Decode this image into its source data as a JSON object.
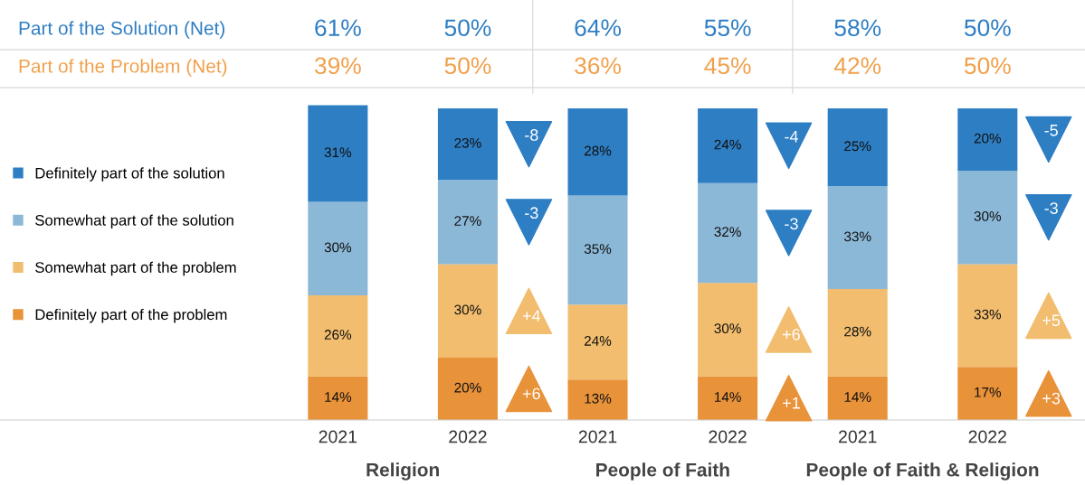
{
  "chart_data": {
    "type": "bar",
    "stacked": true,
    "legend": "left",
    "tick_labels": "x",
    "categories": [
      "2021",
      "2022",
      "2021",
      "2022",
      "2021",
      "2022"
    ],
    "series": [
      {
        "name": "Definitely part of the problem",
        "color": "#e8923a",
        "values": [
          14,
          20,
          13,
          14,
          14,
          17
        ],
        "value_labels": [
          "14%",
          "20%",
          "13%",
          "14%",
          "14%",
          "17%"
        ]
      },
      {
        "name": "Somewhat part of the problem",
        "color": "#f2bd6e",
        "values": [
          26,
          30,
          24,
          30,
          28,
          33
        ],
        "value_labels": [
          "26%",
          "30%",
          "24%",
          "30%",
          "28%",
          "33%"
        ]
      },
      {
        "name": "Somewhat part of the solution",
        "color": "#8cb8d8",
        "values": [
          30,
          27,
          35,
          32,
          33,
          30
        ],
        "value_labels": [
          "30%",
          "27%",
          "35%",
          "32%",
          "33%",
          "30%"
        ]
      },
      {
        "name": "Definitely part of the solution",
        "color": "#2e7ec4",
        "values": [
          31,
          23,
          28,
          24,
          25,
          20
        ],
        "value_labels": [
          "31%",
          "23%",
          "28%",
          "24%",
          "25%",
          "20%"
        ]
      }
    ],
    "annotations": [
      "Part of the Solution (Net)",
      "61%",
      "50%",
      "64%",
      "55%",
      "58%",
      "50%",
      "Part of the Problem (Net)",
      "39%",
      "50%",
      "36%",
      "45%",
      "42%",
      "50%",
      "Religion",
      "People of Faith",
      "People of Faith & Religion",
      "-8",
      "-3",
      "+4",
      "+6",
      "-4",
      "-3",
      "+6",
      "+1",
      "-5",
      "-3",
      "+5",
      "+3"
    ]
  }
}
